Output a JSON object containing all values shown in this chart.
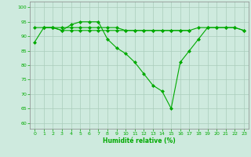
{
  "xlabel": "Humidité relative (%)",
  "background_color": "#ceeade",
  "grid_color": "#aaccbb",
  "line_color": "#00aa00",
  "xlim": [
    -0.5,
    23.5
  ],
  "ylim": [
    58,
    102
  ],
  "yticks": [
    60,
    65,
    70,
    75,
    80,
    85,
    90,
    95,
    100
  ],
  "xticks": [
    0,
    1,
    2,
    3,
    4,
    5,
    6,
    7,
    8,
    9,
    10,
    11,
    12,
    13,
    14,
    15,
    16,
    17,
    18,
    19,
    20,
    21,
    22,
    23
  ],
  "series1_x": [
    0,
    1,
    2,
    3,
    4,
    5,
    6,
    7,
    8,
    9,
    10,
    11,
    12,
    13,
    14,
    15,
    16,
    17,
    18,
    19,
    20,
    21,
    22,
    23
  ],
  "series1_y": [
    88,
    93,
    93,
    92,
    94,
    95,
    95,
    95,
    89,
    86,
    84,
    81,
    77,
    73,
    71,
    65,
    81,
    85,
    89,
    93,
    93,
    93,
    93,
    92
  ],
  "series2_x": [
    0,
    1,
    2,
    3,
    4,
    5,
    6,
    7,
    8,
    9,
    10,
    11,
    12,
    13,
    14,
    15,
    16,
    17,
    18,
    19,
    20,
    21,
    22,
    23
  ],
  "series2_y": [
    93,
    93,
    93,
    93,
    93,
    93,
    93,
    93,
    93,
    93,
    92,
    92,
    92,
    92,
    92,
    92,
    92,
    92,
    93,
    93,
    93,
    93,
    93,
    92
  ],
  "series3_x": [
    1,
    2,
    3,
    4,
    5,
    6,
    7,
    8,
    9,
    10,
    11,
    12,
    13,
    14,
    15,
    16,
    17
  ],
  "series3_y": [
    93,
    93,
    92,
    92,
    92,
    92,
    92,
    92,
    92,
    92,
    92,
    92,
    92,
    92,
    92,
    92,
    92
  ]
}
